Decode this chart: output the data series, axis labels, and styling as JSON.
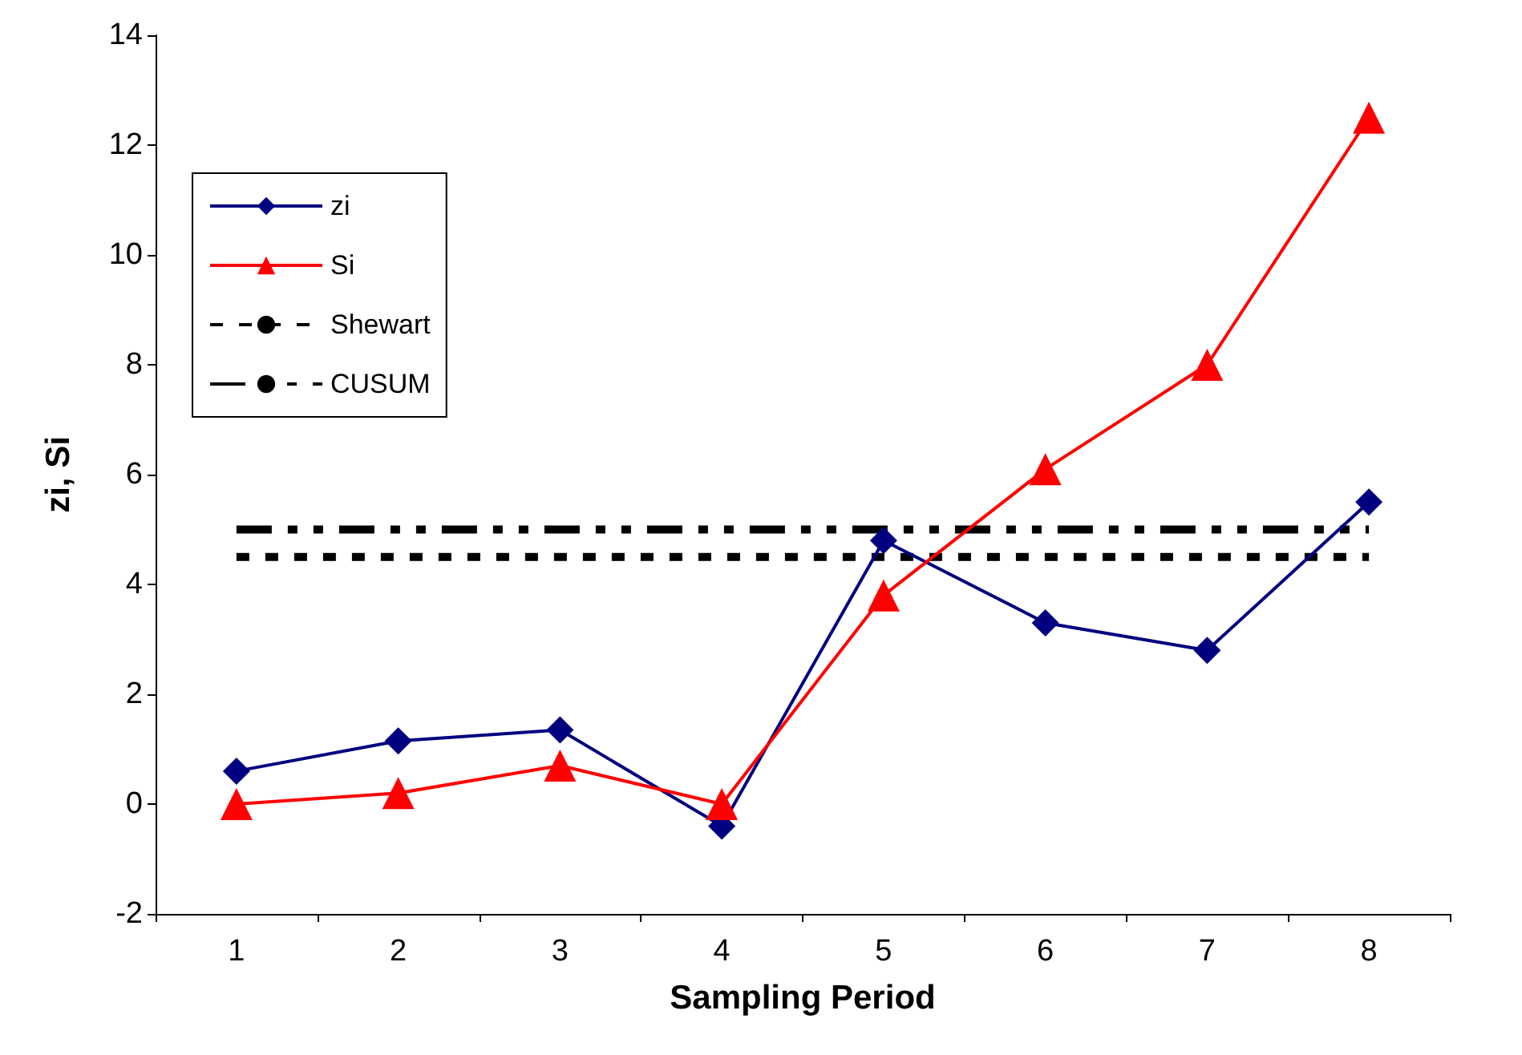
{
  "chart_data": {
    "type": "line",
    "xlabel": "Sampling Period",
    "ylabel": "zi, Si",
    "categories": [
      "1",
      "2",
      "3",
      "4",
      "5",
      "6",
      "7",
      "8"
    ],
    "series": [
      {
        "name": "zi",
        "color": "#000080",
        "marker": "diamond",
        "line_style": "solid",
        "values": [
          0.6,
          1.15,
          1.35,
          -0.4,
          4.8,
          3.3,
          2.8,
          5.5
        ]
      },
      {
        "name": "Si",
        "color": "#ff0000",
        "marker": "triangle",
        "line_style": "solid",
        "values": [
          0,
          0.2,
          0.7,
          0,
          3.8,
          6.1,
          8.0,
          12.5
        ]
      },
      {
        "name": "Shewart",
        "color": "#000000",
        "marker": "none",
        "line_style": "dotted",
        "values": [
          4.5,
          4.5,
          4.5,
          4.5,
          4.5,
          4.5,
          4.5,
          4.5
        ]
      },
      {
        "name": "CUSUM",
        "color": "#000000",
        "marker": "none",
        "line_style": "dashed",
        "values": [
          5,
          5,
          5,
          5,
          5,
          5,
          5,
          5
        ]
      }
    ],
    "ylim": [
      -2,
      14
    ],
    "yticks": [
      -2,
      0,
      2,
      4,
      6,
      8,
      10,
      12,
      14
    ],
    "grid": false,
    "legend": "top left"
  }
}
